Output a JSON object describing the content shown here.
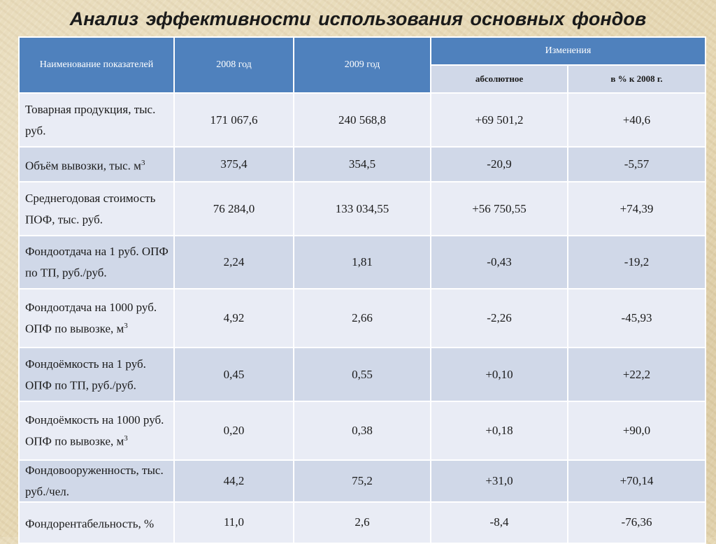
{
  "title": "Анализ  эффективности  использования основных фондов",
  "table": {
    "headers": {
      "name": "Наименование показателей",
      "y2008": "2008 год",
      "y2009": "2009 год",
      "changes": "Изменения",
      "absolute": "абсолютное",
      "percent": "в % к 2008 г."
    },
    "rows": [
      {
        "name": "Товарная продукция, тыс. руб.",
        "sup": "",
        "v2008": "171 067,6",
        "v2009": "240 568,8",
        "abs": "+69 501,2",
        "pct": "+40,6"
      },
      {
        "name": "Объём вывозки, тыс. м",
        "sup": "3",
        "v2008": "375,4",
        "v2009": "354,5",
        "abs": "-20,9",
        "pct": "-5,57"
      },
      {
        "name": "Среднегодовая стоимость ПОФ, тыс. руб.",
        "sup": "",
        "v2008": "76 284,0",
        "v2009": "133 034,55",
        "abs": "+56 750,55",
        "pct": "+74,39"
      },
      {
        "name": "Фондоотдача на 1 руб. ОПФ по ТП, руб./руб.",
        "sup": "",
        "v2008": "2,24",
        "v2009": "1,81",
        "abs": "-0,43",
        "pct": "-19,2"
      },
      {
        "name": "Фондоотдача на 1000 руб. ОПФ по вывозке, м",
        "sup": "3",
        "v2008": "4,92",
        "v2009": "2,66",
        "abs": "-2,26",
        "pct": "-45,93"
      },
      {
        "name": "Фондоёмкость на 1 руб. ОПФ по ТП, руб./руб.",
        "sup": "",
        "v2008": "0,45",
        "v2009": "0,55",
        "abs": "+0,10",
        "pct": "+22,2"
      },
      {
        "name": "Фондоёмкость на 1000 руб. ОПФ по вывозке, м",
        "sup": "3",
        "v2008": "0,20",
        "v2009": "0,38",
        "abs": "+0,18",
        "pct": "+90,0"
      },
      {
        "name": "Фондовооруженность, тыс. руб./чел.",
        "sup": "",
        "v2008": "44,2",
        "v2009": "75,2",
        "abs": "+31,0",
        "pct": "+70,14"
      },
      {
        "name": "Фондорентабельность, %",
        "sup": "",
        "v2008": "11,0",
        "v2009": "2,6",
        "abs": "-8,4",
        "pct": "-76,36"
      }
    ]
  }
}
